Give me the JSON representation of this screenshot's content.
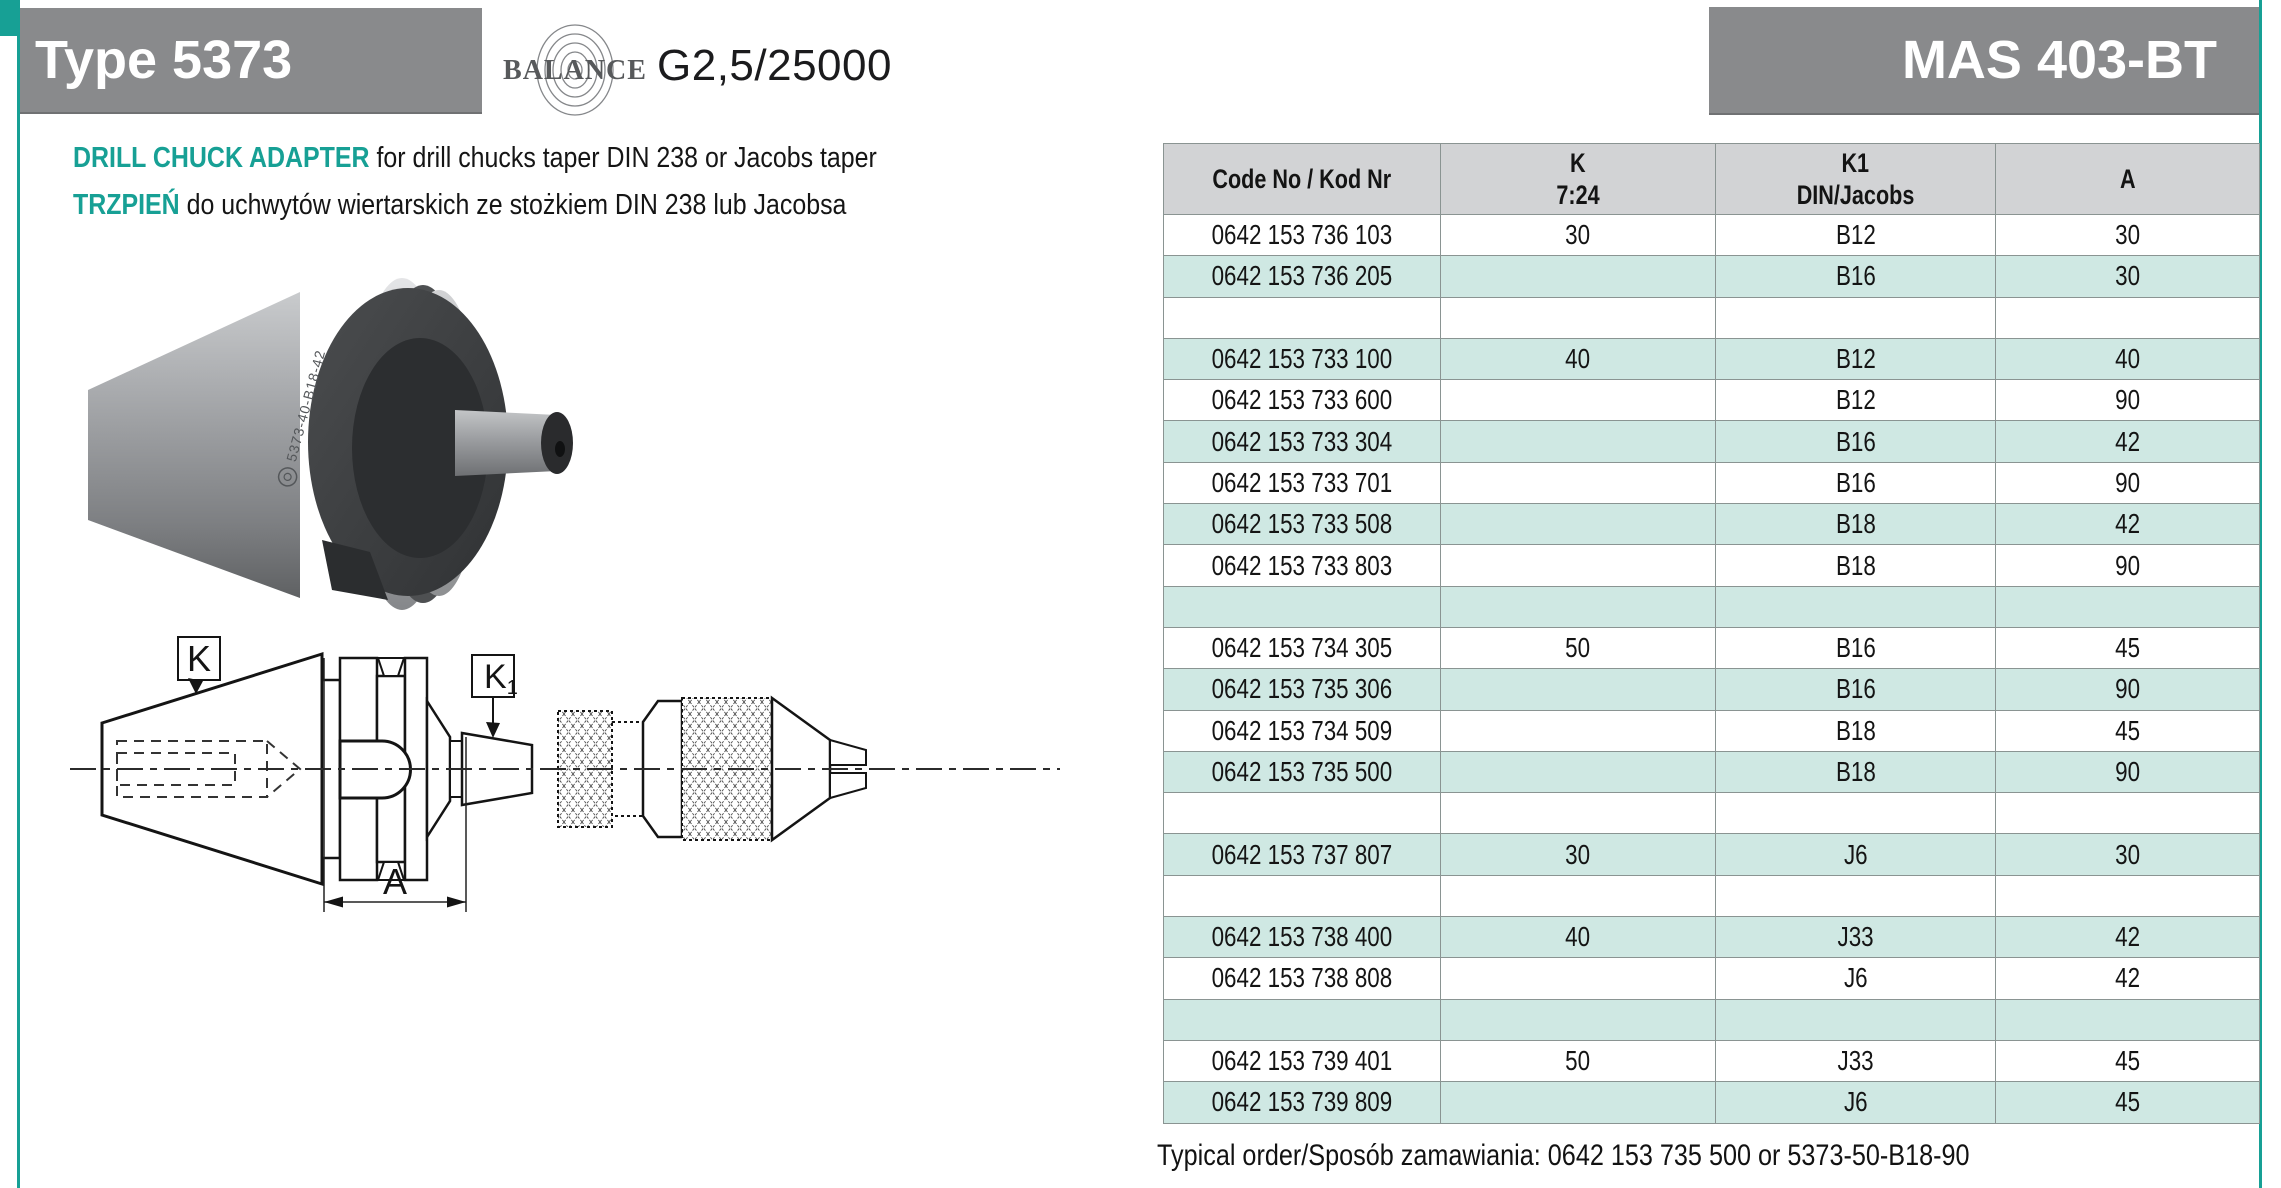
{
  "header": {
    "type_label": "Type 5373",
    "standard_label": "MAS 403-BT",
    "balance_brand": "BALANCE",
    "balance_rating": "G2,5/25000"
  },
  "description": {
    "en_bold": "DRILL CHUCK ADAPTER",
    "en_rest": " for drill chucks taper DIN 238 or Jacobs taper",
    "pl_bold": "TRZPIEŃ",
    "pl_rest": " do uchwytów wiertarskich ze stożkiem DIN 238 lub Jacobsa"
  },
  "photo": {
    "engraving": "5373-40-B18-42"
  },
  "drawing": {
    "label_k": "K",
    "label_k1_base": "K",
    "label_k1_sub": "1",
    "label_a": "A"
  },
  "table": {
    "headers": {
      "col1_line1": "Code No / Kod Nr",
      "col2_line1": "K",
      "col2_line2": "7:24",
      "col3_line1": "K1",
      "col3_line2": "DIN/Jacobs",
      "col4_line1": "A"
    },
    "rows": [
      {
        "code": "0642 153 736 103",
        "k": "30",
        "k1": "B12",
        "a": "30"
      },
      {
        "code": "0642 153 736 205",
        "k": "",
        "k1": "B16",
        "a": "30"
      },
      {
        "code": "",
        "k": "",
        "k1": "",
        "a": ""
      },
      {
        "code": "0642 153 733 100",
        "k": "40",
        "k1": "B12",
        "a": "40"
      },
      {
        "code": "0642 153 733 600",
        "k": "",
        "k1": "B12",
        "a": "90"
      },
      {
        "code": "0642 153 733 304",
        "k": "",
        "k1": "B16",
        "a": "42"
      },
      {
        "code": "0642 153 733 701",
        "k": "",
        "k1": "B16",
        "a": "90"
      },
      {
        "code": "0642 153 733 508",
        "k": "",
        "k1": "B18",
        "a": "42"
      },
      {
        "code": "0642 153 733 803",
        "k": "",
        "k1": "B18",
        "a": "90"
      },
      {
        "code": "",
        "k": "",
        "k1": "",
        "a": ""
      },
      {
        "code": "0642 153 734 305",
        "k": "50",
        "k1": "B16",
        "a": "45"
      },
      {
        "code": "0642 153 735 306",
        "k": "",
        "k1": "B16",
        "a": "90"
      },
      {
        "code": "0642 153 734 509",
        "k": "",
        "k1": "B18",
        "a": "45"
      },
      {
        "code": "0642 153 735 500",
        "k": "",
        "k1": "B18",
        "a": "90"
      },
      {
        "code": "",
        "k": "",
        "k1": "",
        "a": ""
      },
      {
        "code": "0642 153 737 807",
        "k": "30",
        "k1": "J6",
        "a": "30"
      },
      {
        "code": "",
        "k": "",
        "k1": "",
        "a": ""
      },
      {
        "code": "0642 153 738 400",
        "k": "40",
        "k1": "J33",
        "a": "42"
      },
      {
        "code": "0642 153 738 808",
        "k": "",
        "k1": "J6",
        "a": "42"
      },
      {
        "code": "",
        "k": "",
        "k1": "",
        "a": ""
      },
      {
        "code": "0642 153 739 401",
        "k": "50",
        "k1": "J33",
        "a": "45"
      },
      {
        "code": "0642 153 739 809",
        "k": "",
        "k1": "J6",
        "a": "45"
      }
    ]
  },
  "footer": {
    "typical_order": "Typical order/Sposób zamawiania: 0642 153 735 500 or 5373-50-B18-90"
  },
  "colors": {
    "accent_teal": "#17a095",
    "box_gray": "#898a8c",
    "table_header_bg": "#d2d3d5",
    "row_teal": "#cfe8e3",
    "border_gray": "#8a9492"
  }
}
